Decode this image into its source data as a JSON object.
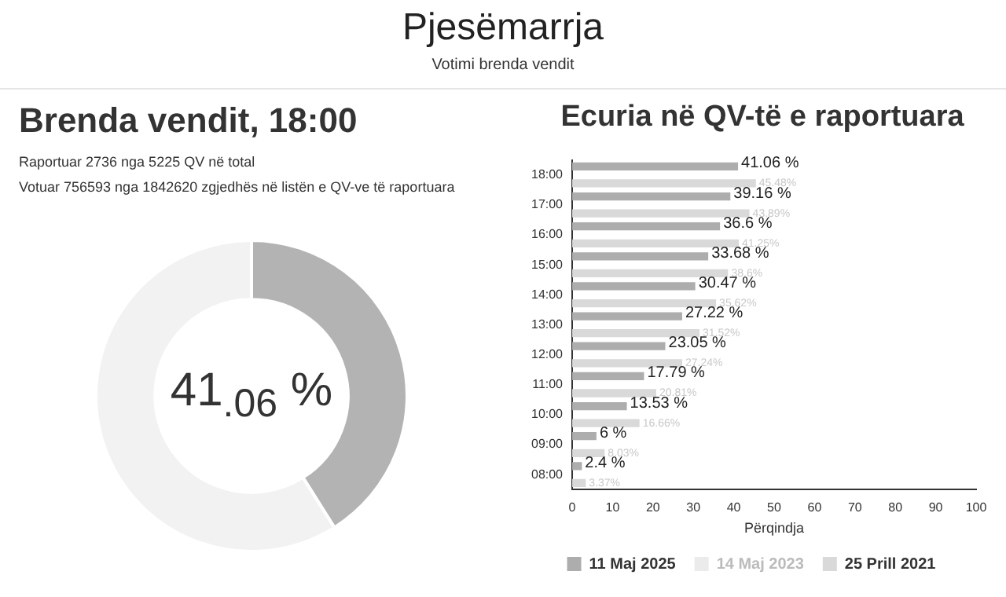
{
  "chart_data": [
    {
      "type": "other",
      "title": "Pjesëmarrja",
      "subtitle": "Votimi brenda vendit"
    },
    {
      "type": "donut",
      "title": "Brenda vendit, 18:00",
      "annotations": [
        "Raportuar 2736 nga 5225 QV në total",
        "Votuar 756593 nga 1842620 zgjedhës në listën e QV-ve të raportuara"
      ],
      "categories": [
        null,
        null
      ],
      "values": [
        41.06,
        58.94
      ],
      "colors": [
        "#b3b3b3",
        "#f2f2f2"
      ],
      "value_labels": [
        "41$_{.06}$ %",
        null
      ]
    },
    {
      "type": "bar",
      "title": "Ecuria në QV-të e raportuara",
      "orientation": "horizontal",
      "xlabel": "Përqindja",
      "categories": [
        "18:00",
        "17:00",
        "16:00",
        "15:00",
        "14:00",
        "13:00",
        "12:00",
        "11:00",
        "10:00",
        "09:00",
        "08:00"
      ],
      "series": [
        {
          "name": "11 Maj 2025",
          "color": "#adadad",
          "values": [
            41.06,
            39.16,
            36.6,
            33.68,
            30.47,
            27.22,
            23.05,
            17.79,
            13.53,
            6,
            2.4
          ],
          "value_labels": [
            "41.06 %",
            "39.16 %",
            "36.6 %",
            "33.68 %",
            "30.47 %",
            "27.22 %",
            "23.05 %",
            "17.79 %",
            "13.53 %",
            "6 %",
            "2.4 %"
          ]
        },
        {
          "name": "14 Maj 2023",
          "color": "#ebebeb",
          "values": [
            null,
            null,
            null,
            null,
            null,
            null,
            null,
            null,
            null,
            null,
            null
          ]
        },
        {
          "name": "25 Prill 2021",
          "color": "#d9d9d9",
          "values": [
            45.48,
            43.89,
            41.25,
            38.6,
            35.62,
            31.52,
            27.24,
            20.81,
            16.66,
            8.03,
            3.37
          ],
          "value_labels": [
            "45.48%",
            "43.89%",
            "41.25%",
            "38.6%",
            "35.62%",
            "31.52%",
            "27.24%",
            "20.81%",
            "16.66%",
            "8.03%",
            "3.37%"
          ]
        }
      ],
      "xlim": [
        0,
        100
      ],
      "xticks": [
        0,
        10,
        20,
        30,
        40,
        50,
        60,
        70,
        80,
        90,
        100
      ],
      "grid": false,
      "legend": "bottom"
    }
  ]
}
